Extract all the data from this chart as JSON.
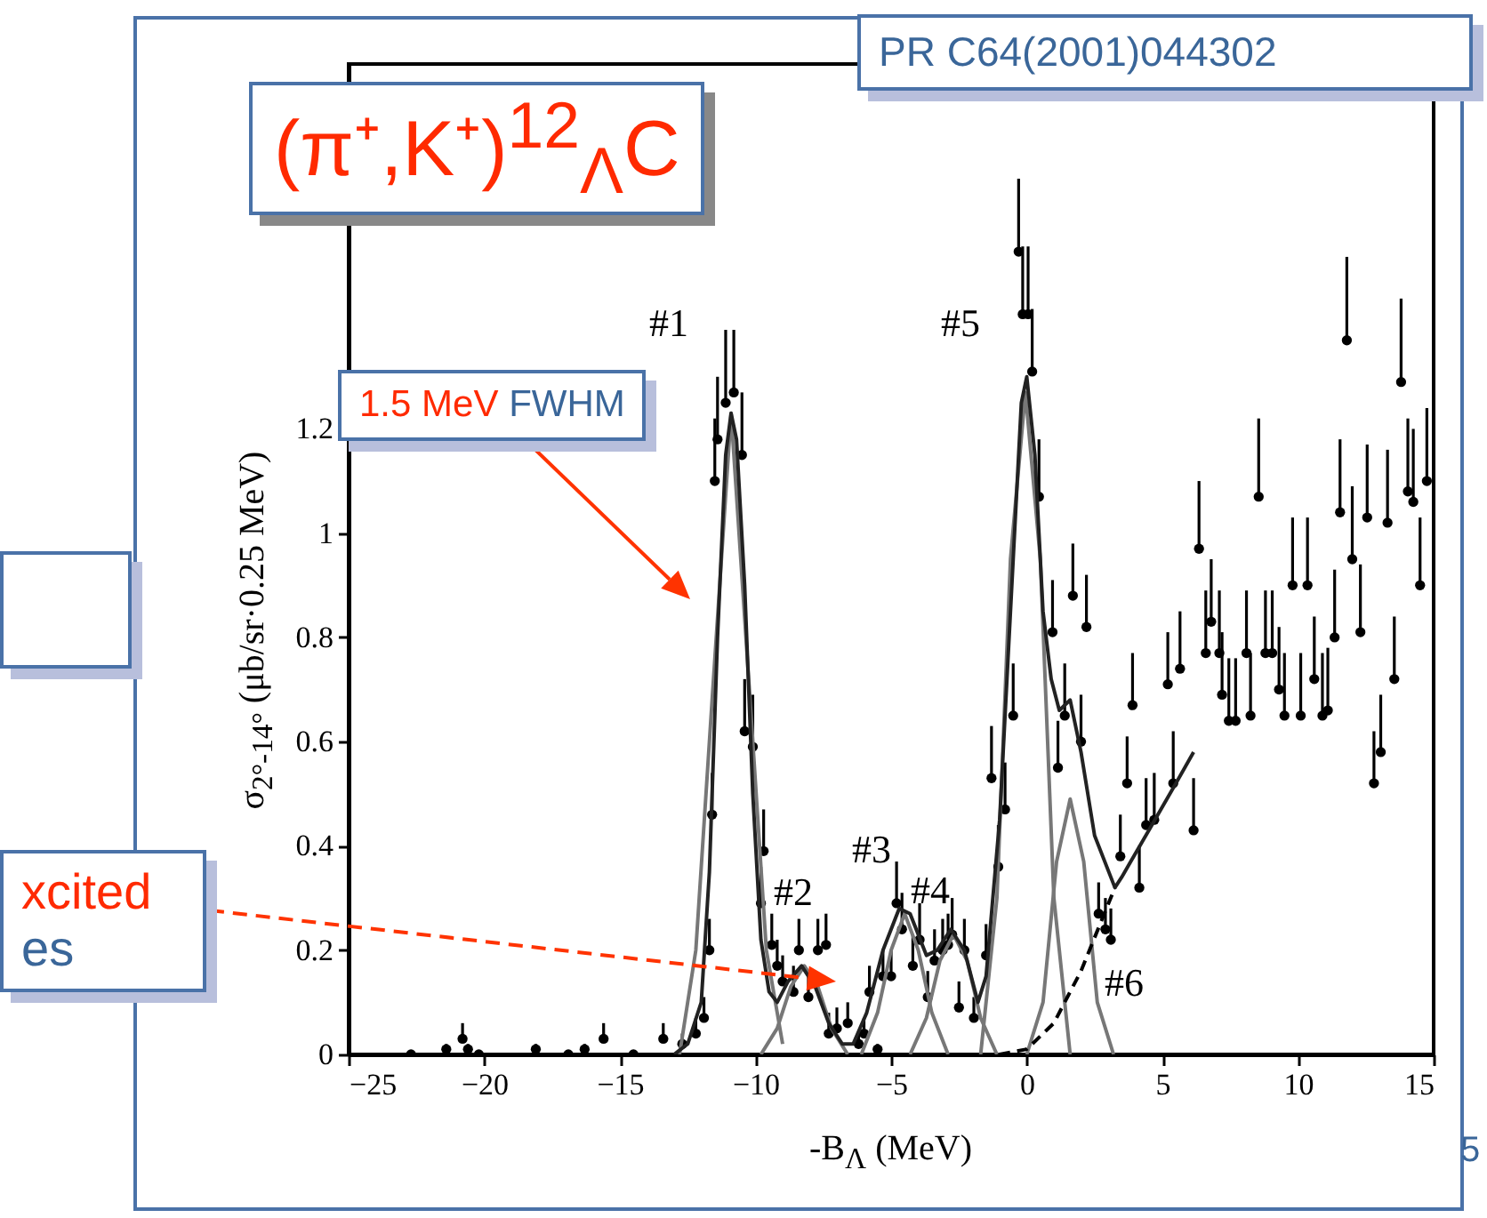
{
  "chart_data": {
    "type": "scatter",
    "title": "(π⁺,K⁺)$^{12}$$_{Λ}$C",
    "xlabel": "-B$_{Λ}$ (MeV)",
    "ylabel": "σ$_{2°-14°}$ (μb/sr·0.25 MeV)",
    "xlim": [
      -25,
      15
    ],
    "ylim": [
      0,
      1.9
    ],
    "xticks": [
      -25,
      -20,
      -15,
      -10,
      -5,
      0,
      5,
      10,
      15
    ],
    "yticks": [
      0,
      0.2,
      0.4,
      0.6,
      0.8,
      1,
      1.2
    ],
    "grid": false,
    "annotations": [
      "#1",
      "#2",
      "#3",
      "#4",
      "#5",
      "#6",
      "1.5 MeV FWHM",
      "xcited es",
      "PR C64(2001)044302",
      "5"
    ],
    "series": [
      {
        "type": "scatter",
        "color": "#000000",
        "marker": "circle",
        "x": [
          -22.7,
          -21.4,
          -20.8,
          -20.6,
          -20.2,
          -18.1,
          -16.9,
          -16.3,
          -15.6,
          -14.5,
          -13.4,
          -12.7,
          -12.2,
          -11.9,
          -11.7,
          -11.6,
          -11.5,
          -11.4,
          -11.1,
          -10.8,
          -10.5,
          -10.4,
          -10.1,
          -9.7,
          -9.8,
          -9.4,
          -9.2,
          -9.0,
          -8.6,
          -8.4,
          -8.05,
          -7.7,
          -7.4,
          -7.3,
          -7.0,
          -6.6,
          -6.2,
          -6.0,
          -5.8,
          -5.5,
          -5.3,
          -5.0,
          -4.8,
          -4.6,
          -4.2,
          -3.95,
          -3.65,
          -3.4,
          -3.1,
          -2.9,
          -2.75,
          -2.5,
          -2.3,
          -1.95,
          -1.5,
          -1.3,
          -1.05,
          -0.8,
          -0.5,
          -0.3,
          -0.15,
          0.05,
          0.2,
          0.45,
          0.95,
          1.15,
          1.4,
          1.7,
          2.0,
          2.2,
          2.65,
          2.9,
          3.1,
          3.45,
          3.7,
          3.9,
          4.15,
          4.4,
          4.7,
          5.2,
          5.4,
          5.65,
          6.15,
          6.35,
          6.6,
          6.8,
          7.1,
          7.2,
          7.45,
          7.7,
          8.1,
          8.25,
          8.55,
          8.8,
          9.05,
          9.3,
          9.5,
          9.8,
          10.1,
          10.35,
          10.6,
          10.9,
          11.1,
          11.35,
          11.55,
          11.8,
          12.0,
          12.3,
          12.55,
          12.8,
          13.05,
          13.3,
          13.55,
          13.8,
          14.05,
          14.25,
          14.5,
          14.75
        ],
        "values": [
          0,
          0.01,
          0.03,
          0.01,
          0,
          0.01,
          0,
          0.01,
          0.03,
          0,
          0.03,
          0.02,
          0.04,
          0.07,
          0.2,
          0.46,
          1.1,
          1.18,
          1.25,
          1.27,
          1.15,
          0.62,
          0.59,
          0.39,
          0.29,
          0.21,
          0.17,
          0.14,
          0.12,
          0.2,
          0.11,
          0.2,
          0.21,
          0.04,
          0.05,
          0.06,
          0.02,
          0.04,
          0.12,
          0.01,
          0.15,
          0.15,
          0.29,
          0.24,
          0.17,
          0.22,
          0.11,
          0.18,
          0.2,
          0.21,
          0.23,
          0.09,
          0.2,
          0.07,
          0.19,
          0.53,
          0.36,
          0.47,
          0.65,
          1.54,
          1.42,
          1.42,
          1.31,
          1.07,
          0.81,
          0.55,
          0.65,
          0.88,
          0.6,
          0.82,
          0.27,
          0.24,
          0.22,
          0.38,
          0.52,
          0.67,
          0.32,
          0.44,
          0.45,
          0.71,
          0.52,
          0.74,
          0.43,
          0.97,
          0.77,
          0.83,
          0.77,
          0.69,
          0.64,
          0.64,
          0.77,
          0.65,
          1.07,
          0.77,
          0.77,
          0.7,
          0.65,
          0.9,
          0.65,
          0.9,
          0.72,
          0.65,
          0.66,
          0.8,
          1.04,
          1.37,
          0.95,
          0.81,
          1.03,
          0.52,
          0.58,
          1.02,
          0.72,
          1.29,
          1.08,
          1.06,
          0.9,
          1.1
        ],
        "errors": [
          null,
          0.01,
          0.03,
          0.01,
          null,
          0.01,
          null,
          0.01,
          0.03,
          null,
          0.03,
          0.02,
          0.03,
          0.04,
          0.06,
          0.08,
          0.12,
          0.12,
          0.14,
          0.12,
          0.12,
          0.1,
          0.1,
          0.08,
          0.07,
          0.06,
          0.05,
          0.05,
          0.05,
          0.06,
          0.05,
          0.06,
          0.06,
          0.04,
          0.04,
          0.04,
          0.02,
          0.03,
          0.05,
          0.01,
          0.05,
          0.05,
          0.08,
          0.07,
          0.06,
          0.07,
          0.05,
          0.06,
          0.06,
          0.06,
          0.07,
          0.05,
          0.06,
          0.04,
          0.06,
          0.1,
          0.08,
          0.09,
          0.1,
          0.14,
          0.13,
          0.13,
          0.12,
          0.11,
          0.1,
          0.09,
          0.1,
          0.1,
          0.09,
          0.1,
          0.06,
          0.06,
          0.06,
          0.08,
          0.09,
          0.1,
          0.08,
          0.09,
          0.09,
          0.1,
          0.1,
          0.11,
          0.1,
          0.13,
          0.12,
          0.12,
          0.12,
          0.12,
          0.12,
          0.12,
          0.12,
          0.12,
          0.15,
          0.12,
          0.12,
          0.12,
          0.12,
          0.13,
          0.12,
          0.13,
          0.12,
          0.12,
          0.12,
          0.13,
          0.14,
          0.16,
          0.14,
          0.13,
          0.14,
          0.1,
          0.11,
          0.14,
          0.12,
          0.16,
          0.14,
          0.14,
          0.13,
          0.14
        ]
      },
      {
        "type": "line",
        "color": "#777777",
        "x": [
          -12.8,
          -12.2,
          -11.6,
          -10.9,
          -10.2,
          -9.6,
          -9.0
        ],
        "values": [
          0,
          0.2,
          0.68,
          1.23,
          0.68,
          0.2,
          0.02
        ]
      },
      {
        "type": "line",
        "color": "#777777",
        "x": [
          -9.8,
          -9.2,
          -8.7,
          -8.2,
          -7.7,
          -7.2,
          -6.6
        ],
        "values": [
          0,
          0.05,
          0.13,
          0.17,
          0.13,
          0.05,
          0
        ]
      },
      {
        "type": "line",
        "color": "#777777",
        "x": [
          -6.1,
          -5.5,
          -5.0,
          -4.5,
          -4.0,
          -3.5,
          -2.9
        ],
        "values": [
          0,
          0.08,
          0.2,
          0.27,
          0.2,
          0.08,
          0
        ]
      },
      {
        "type": "line",
        "color": "#777777",
        "x": [
          -4.3,
          -3.7,
          -3.2,
          -2.7,
          -2.2,
          -1.7,
          -1.1
        ],
        "values": [
          0,
          0.07,
          0.18,
          0.23,
          0.18,
          0.07,
          0
        ]
      },
      {
        "type": "line",
        "color": "#777777",
        "x": [
          -1.7,
          -1.1,
          -0.6,
          -0.05,
          0.5,
          1.0,
          1.6
        ],
        "values": [
          0,
          0.3,
          0.95,
          1.27,
          0.95,
          0.3,
          0
        ]
      },
      {
        "type": "line",
        "color": "#777777",
        "x": [
          0,
          0.6,
          1.1,
          1.6,
          2.1,
          2.6,
          3.2
        ],
        "values": [
          0,
          0.1,
          0.37,
          0.49,
          0.37,
          0.1,
          0
        ]
      },
      {
        "type": "line",
        "color": "#000000",
        "line_style": "dashed",
        "x": [
          -1,
          0,
          1,
          2,
          3.25
        ],
        "values": [
          0,
          0.01,
          0.06,
          0.16,
          0.32
        ]
      },
      {
        "type": "line",
        "color": "#222222",
        "x": [
          -13,
          -12.5,
          -12,
          -11.7,
          -11.4,
          -11.1,
          -10.9,
          -10.7,
          -10.4,
          -10.1,
          -9.8,
          -9.5,
          -9.2,
          -8.8,
          -8.3,
          -7.8,
          -7.3,
          -6.8,
          -6.4,
          -5.9,
          -5.3,
          -4.7,
          -4.3,
          -3.7,
          -3.3,
          -2.8,
          -2.3,
          -1.8,
          -1.5,
          -1.0,
          -0.5,
          -0.2,
          0,
          0.3,
          0.6,
          0.9,
          1.2,
          1.6,
          2.0,
          2.5,
          3.25,
          3.5,
          4.5,
          5.5,
          6.15
        ],
        "values": [
          0,
          0.02,
          0.1,
          0.35,
          0.8,
          1.15,
          1.23,
          1.18,
          0.9,
          0.5,
          0.22,
          0.12,
          0.1,
          0.14,
          0.17,
          0.13,
          0.06,
          0.02,
          0.02,
          0.08,
          0.2,
          0.28,
          0.27,
          0.19,
          0.2,
          0.24,
          0.2,
          0.1,
          0.15,
          0.45,
          0.95,
          1.25,
          1.3,
          1.15,
          0.85,
          0.72,
          0.66,
          0.68,
          0.58,
          0.42,
          0.32,
          0.34,
          0.43,
          0.52,
          0.58
        ]
      }
    ]
  }
}
